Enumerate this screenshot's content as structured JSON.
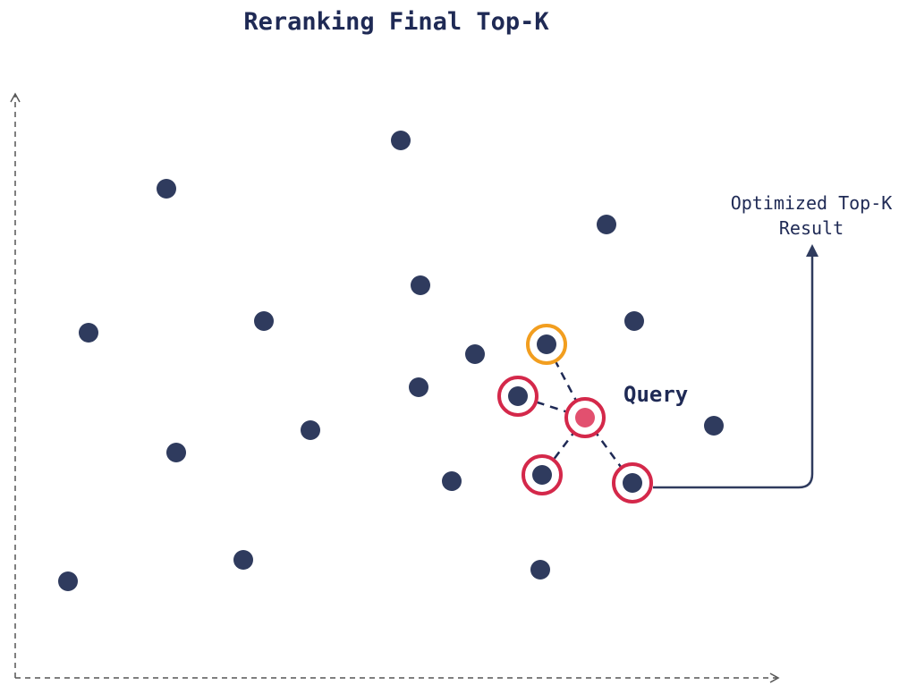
{
  "header": {
    "title": "Reranking Final Top-K"
  },
  "labels": {
    "query": "Query",
    "result": [
      "Optimized Top-K",
      "Result"
    ]
  }
}
